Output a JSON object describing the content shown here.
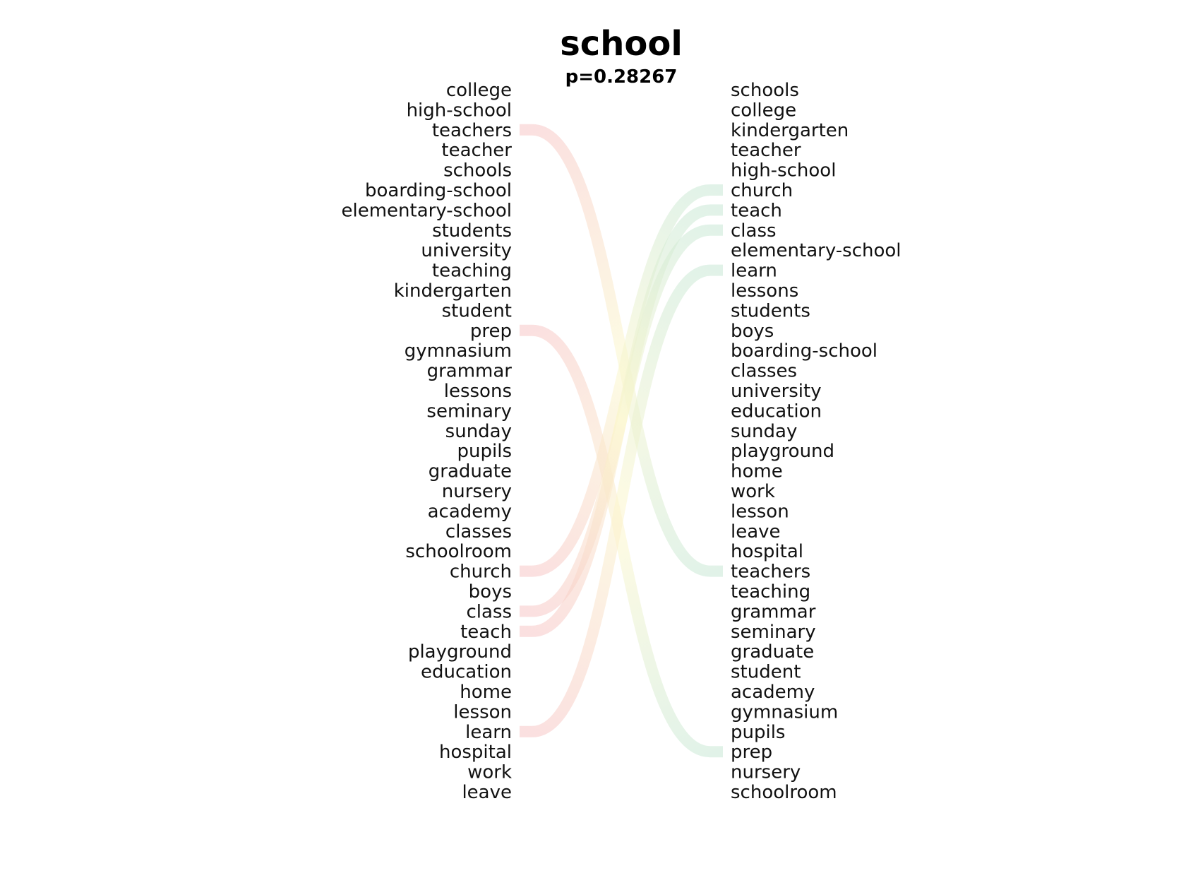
{
  "chart_data": {
    "type": "rank-comparison",
    "title": "school",
    "subtitle": "p=0.28267",
    "left_words": [
      "college",
      "high-school",
      "teachers",
      "teacher",
      "schools",
      "boarding-school",
      "elementary-school",
      "students",
      "university",
      "teaching",
      "kindergarten",
      "student",
      "prep",
      "gymnasium",
      "grammar",
      "lessons",
      "seminary",
      "sunday",
      "pupils",
      "graduate",
      "nursery",
      "academy",
      "classes",
      "schoolroom",
      "church",
      "boys",
      "class",
      "teach",
      "playground",
      "education",
      "home",
      "lesson",
      "learn",
      "hospital",
      "work",
      "leave"
    ],
    "right_words": [
      "schools",
      "college",
      "kindergarten",
      "teacher",
      "high-school",
      "church",
      "teach",
      "class",
      "elementary-school",
      "learn",
      "lessons",
      "students",
      "boys",
      "boarding-school",
      "classes",
      "university",
      "education",
      "sunday",
      "playground",
      "home",
      "work",
      "lesson",
      "leave",
      "hospital",
      "teachers",
      "teaching",
      "grammar",
      "seminary",
      "graduate",
      "student",
      "academy",
      "gymnasium",
      "pupils",
      "prep",
      "nursery",
      "schoolroom"
    ],
    "highlighted_links": [
      {
        "word": "teachers",
        "from_rank": 3,
        "to_rank": 25
      },
      {
        "word": "prep",
        "from_rank": 13,
        "to_rank": 34
      },
      {
        "word": "church",
        "from_rank": 25,
        "to_rank": 6
      },
      {
        "word": "class",
        "from_rank": 27,
        "to_rank": 8
      },
      {
        "word": "teach",
        "from_rank": 28,
        "to_rank": 7
      },
      {
        "word": "learn",
        "from_rank": 33,
        "to_rank": 10
      }
    ],
    "colors": {
      "drop_start": "#f7c6c6",
      "rise_start": "#f7c6c6",
      "mid": "#fbf6cc",
      "end": "#c8e8d6",
      "text": "#111111"
    }
  }
}
